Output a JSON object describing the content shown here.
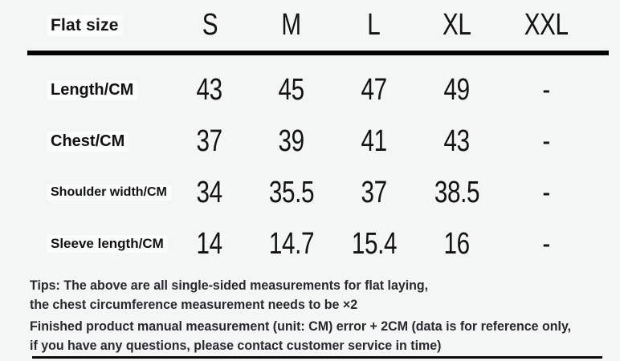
{
  "chart_data": {
    "type": "table",
    "corner_label": "Flat size",
    "columns": [
      "S",
      "M",
      "L",
      "XL",
      "XXL"
    ],
    "rows": [
      {
        "label": "Length/CM",
        "values": [
          "43",
          "45",
          "47",
          "49",
          "-"
        ]
      },
      {
        "label": "Chest/CM",
        "values": [
          "37",
          "39",
          "41",
          "43",
          "-"
        ]
      },
      {
        "label": "Shoulder width/CM",
        "values": [
          "34",
          "35.5",
          "37",
          "38.5",
          "-"
        ]
      },
      {
        "label": "Sleeve length/CM",
        "values": [
          "14",
          "14.7",
          "15.4",
          "16",
          "-"
        ]
      }
    ],
    "unit": "CM"
  },
  "tips": {
    "lines": [
      "Tips: The above are all single-sided measurements for flat laying,",
      "the chest circumference measurement needs to be ×2",
      "Finished product manual measurement (unit: CM) error + 2CM (data is for reference only,",
      "if you have any questions, please contact customer service in time)"
    ]
  },
  "colors": {
    "background": "#f3f6f5",
    "table_text": "#131313",
    "tips_text": "#2b2730",
    "divider": "#030303"
  }
}
